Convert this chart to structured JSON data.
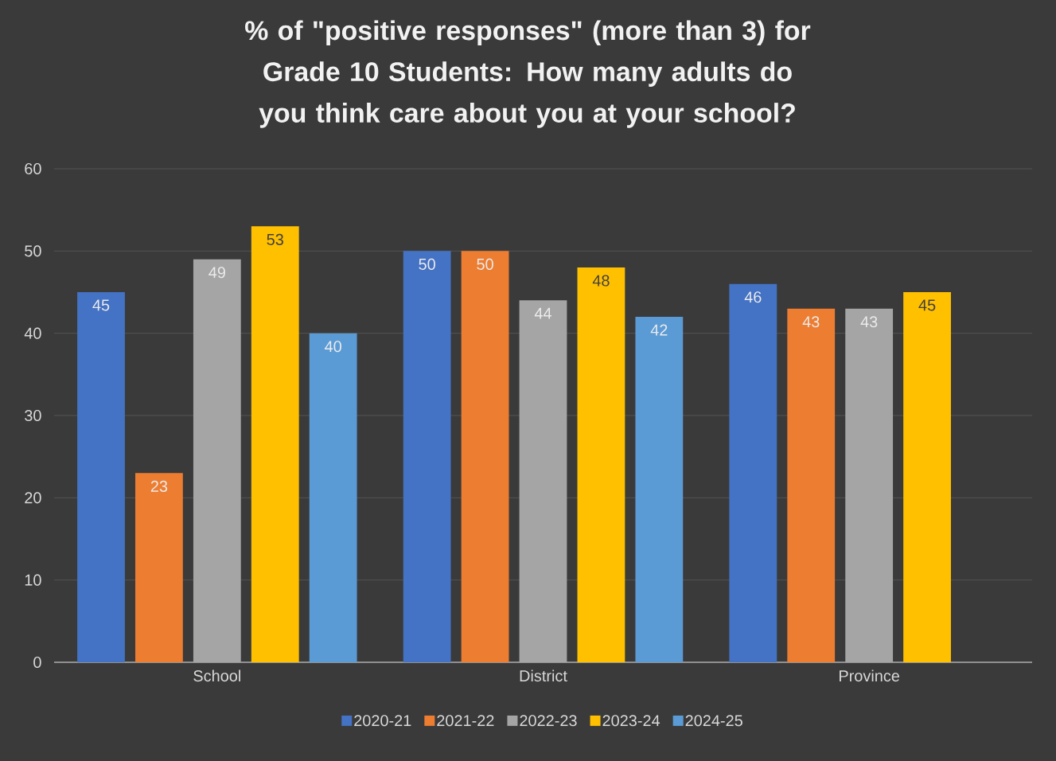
{
  "chart_data": {
    "type": "bar",
    "title": "% of \"positive responses\" (more than 3) for Grade 10 Students: How many adults do you think care about you at your school?",
    "categories": [
      "School",
      "District",
      "Province"
    ],
    "series": [
      {
        "name": "2020-21",
        "color": "#4472c4",
        "values": [
          45,
          50,
          46
        ]
      },
      {
        "name": "2021-22",
        "color": "#ed7d31",
        "values": [
          23,
          50,
          43
        ]
      },
      {
        "name": "2022-23",
        "color": "#a5a5a5",
        "values": [
          49,
          44,
          43
        ]
      },
      {
        "name": "2023-24",
        "color": "#ffc000",
        "values": [
          53,
          48,
          45
        ]
      },
      {
        "name": "2024-25",
        "color": "#5b9bd5",
        "values": [
          40,
          42,
          null
        ]
      }
    ],
    "ylim": [
      0,
      60
    ],
    "yticks": [
      0,
      10,
      20,
      30,
      40,
      50,
      60
    ],
    "grid": "y",
    "legend": "bottom",
    "data_labels": true
  }
}
